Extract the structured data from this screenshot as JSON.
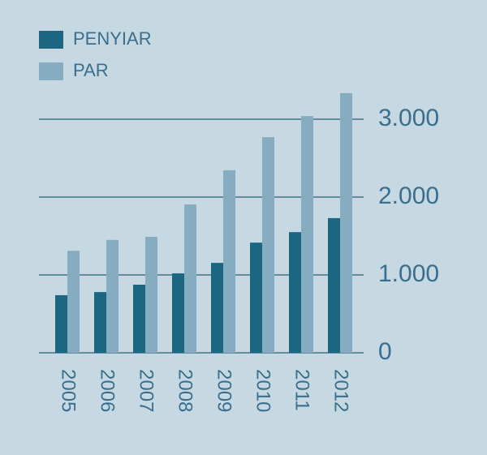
{
  "chart_data": {
    "type": "bar",
    "categories": [
      "2005",
      "2006",
      "2007",
      "2008",
      "2009",
      "2010",
      "2011",
      "2012"
    ],
    "series": [
      {
        "name": "PENYIAR",
        "color": "#1b6680",
        "values": [
          740,
          780,
          875,
          1020,
          1155,
          1415,
          1550,
          1730
        ]
      },
      {
        "name": "PAR",
        "color": "#86acbf",
        "values": [
          1310,
          1450,
          1490,
          1905,
          2345,
          2770,
          3040,
          3335
        ]
      }
    ],
    "ylim": [
      0,
      3400
    ],
    "yticks": [
      0,
      {
        "value": 1000,
        "label": "1.000"
      },
      {
        "value": 2000,
        "label": "2.000"
      },
      {
        "value": 3000,
        "label": "3.000"
      }
    ],
    "grid": true,
    "y_axis_side": "right",
    "legend": "top-left"
  }
}
